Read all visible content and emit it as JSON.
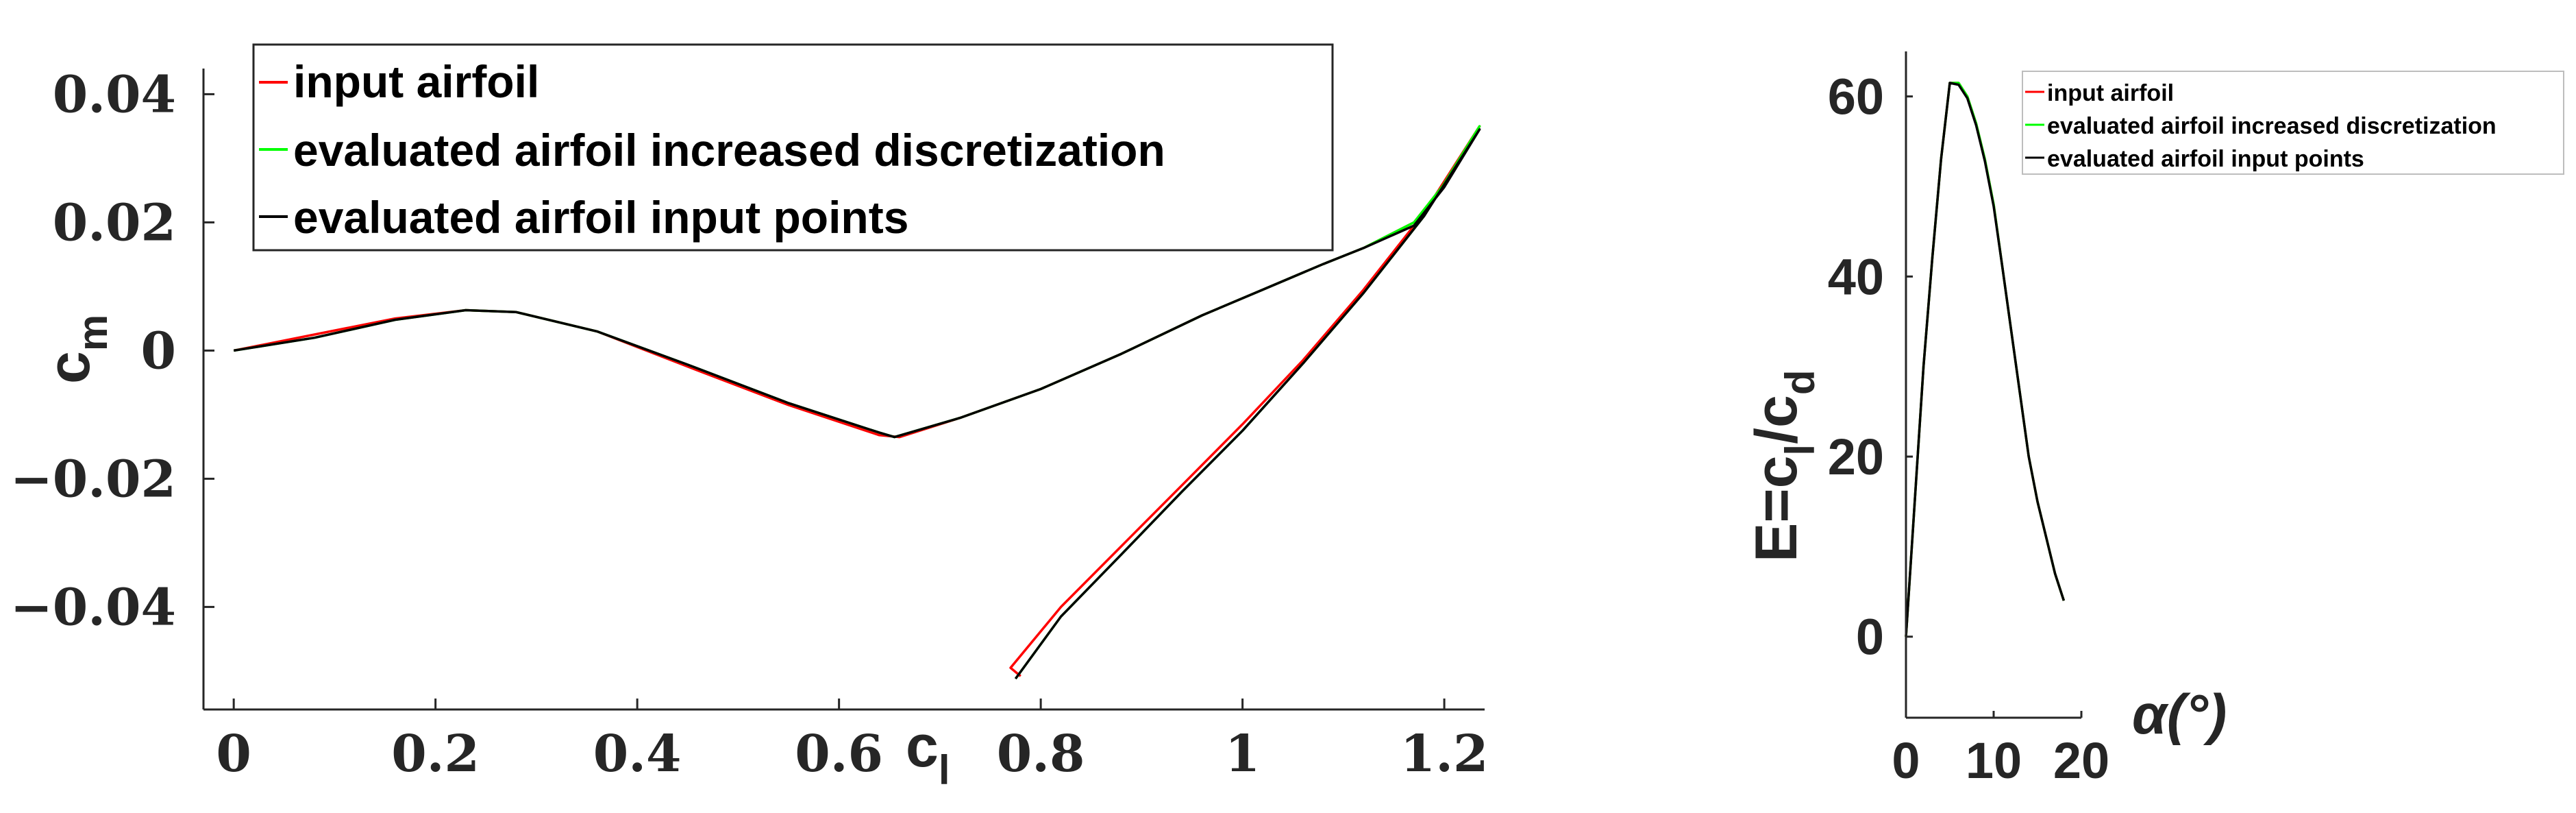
{
  "colors": {
    "input_airfoil": "#ff0000",
    "increased_discretization": "#00ff00",
    "input_points": "#000000",
    "axis": "#262626"
  },
  "chart_data": [
    {
      "type": "line",
      "xlabel_main": "c",
      "xlabel_sub": "l",
      "ylabel_main": "c",
      "ylabel_sub": "m",
      "xlim": [
        -0.03,
        1.24
      ],
      "ylim": [
        -0.056,
        0.044
      ],
      "xticks": [
        0,
        0.2,
        0.4,
        0.6,
        0.8,
        1,
        1.2
      ],
      "xtick_labels": [
        "0",
        "0.2",
        "0.4",
        "0.6",
        "0.8",
        "1",
        "1.2"
      ],
      "yticks": [
        0.04,
        0.02,
        0,
        -0.02,
        -0.04
      ],
      "ytick_labels": [
        "0.04",
        "0.02",
        "0",
        "−0.02",
        "−0.04"
      ],
      "grid": false,
      "legend_position": "top",
      "series": [
        {
          "name": "input airfoil",
          "color": "#ff0000",
          "x": [
            0,
            0.08,
            0.16,
            0.23,
            0.28,
            0.36,
            0.45,
            0.55,
            0.64,
            0.66,
            0.72,
            0.8,
            0.88,
            0.96,
            1.02,
            1.08,
            1.12,
            1.17,
            1.2,
            1.235,
            1.18,
            1.12,
            1.06,
            1.0,
            0.94,
            0.88,
            0.82,
            0.77,
            0.78
          ],
          "y": [
            0,
            0.0025,
            0.005,
            0.0063,
            0.006,
            0.003,
            -0.0025,
            -0.0085,
            -0.0132,
            -0.0135,
            -0.0105,
            -0.006,
            -0.0005,
            0.0055,
            0.0095,
            0.0135,
            0.016,
            0.02,
            0.026,
            0.035,
            0.0215,
            0.0095,
            -0.0015,
            -0.0115,
            -0.021,
            -0.0305,
            -0.04,
            -0.0495,
            -0.0508
          ]
        },
        {
          "name": "evaluated airfoil increased discretization",
          "color": "#00ff00",
          "x": [
            0,
            0.08,
            0.16,
            0.23,
            0.28,
            0.36,
            0.45,
            0.55,
            0.64,
            0.655,
            0.72,
            0.8,
            0.88,
            0.96,
            1.02,
            1.08,
            1.12,
            1.17,
            1.2,
            1.235,
            1.18,
            1.12,
            1.06,
            1.0,
            0.94,
            0.88,
            0.82,
            0.775
          ],
          "y": [
            0,
            0.002,
            0.0048,
            0.0063,
            0.006,
            0.003,
            -0.0022,
            -0.0082,
            -0.0128,
            -0.0135,
            -0.0105,
            -0.006,
            -0.0005,
            0.0055,
            0.0095,
            0.0135,
            0.016,
            0.02,
            0.026,
            0.035,
            0.021,
            0.009,
            -0.002,
            -0.0125,
            -0.022,
            -0.0318,
            -0.0415,
            -0.0512
          ]
        },
        {
          "name": "evaluated airfoil input points",
          "color": "#000000",
          "x": [
            0,
            0.08,
            0.16,
            0.23,
            0.28,
            0.36,
            0.45,
            0.55,
            0.64,
            0.655,
            0.72,
            0.8,
            0.88,
            0.96,
            1.02,
            1.08,
            1.12,
            1.17,
            1.2,
            1.235,
            1.18,
            1.12,
            1.06,
            1.0,
            0.94,
            0.88,
            0.82,
            0.775
          ],
          "y": [
            0,
            0.002,
            0.0048,
            0.0063,
            0.006,
            0.003,
            -0.0022,
            -0.0082,
            -0.0128,
            -0.0135,
            -0.0105,
            -0.006,
            -0.0005,
            0.0055,
            0.0095,
            0.0135,
            0.016,
            0.0195,
            0.0255,
            0.0345,
            0.021,
            0.009,
            -0.002,
            -0.0125,
            -0.022,
            -0.0318,
            -0.0415,
            -0.0512
          ]
        }
      ]
    },
    {
      "type": "line",
      "xlabel": "α(°)",
      "ylabel_prefix": "E=c",
      "ylabel_sub1": "l",
      "ylabel_mid": "/c",
      "ylabel_sub2": "d",
      "xlim": [
        0,
        20
      ],
      "ylim": [
        -9,
        65
      ],
      "xticks": [
        0,
        10,
        20
      ],
      "xtick_labels": [
        "0",
        "10",
        "20"
      ],
      "yticks": [
        0,
        20,
        40,
        60
      ],
      "ytick_labels": [
        "0",
        "20",
        "40",
        "60"
      ],
      "grid": false,
      "legend_position": "top-right",
      "series": [
        {
          "name": "input airfoil",
          "color": "#ff0000",
          "x": [
            0,
            1,
            2,
            3,
            4,
            5,
            6,
            7,
            8,
            9,
            10,
            11,
            12,
            13,
            14,
            15,
            16,
            17,
            18
          ],
          "y": [
            0,
            15,
            30,
            42,
            53,
            61.5,
            61.5,
            60,
            57,
            53,
            48,
            41,
            34,
            27,
            20,
            15,
            11,
            7,
            4
          ]
        },
        {
          "name": "evaluated airfoil increased discretization",
          "color": "#00ff00",
          "x": [
            0,
            1,
            2,
            3,
            4,
            5,
            6,
            7,
            8,
            9,
            10,
            11,
            12,
            13,
            14,
            15,
            16,
            17,
            18
          ],
          "y": [
            0,
            15,
            30,
            42,
            53,
            61.5,
            61.5,
            60,
            57,
            53,
            48,
            41,
            34,
            27,
            20,
            15,
            11,
            7,
            4
          ]
        },
        {
          "name": "evaluated airfoil input points",
          "color": "#000000",
          "x": [
            0,
            1,
            2,
            3,
            4,
            5,
            6,
            7,
            8,
            9,
            10,
            11,
            12,
            13,
            14,
            15,
            16,
            17,
            18
          ],
          "y": [
            0,
            15,
            30,
            42,
            53,
            61.5,
            61.3,
            59.8,
            56.8,
            52.8,
            47.8,
            41,
            34,
            27,
            20,
            15,
            11,
            7,
            4
          ]
        }
      ]
    }
  ]
}
